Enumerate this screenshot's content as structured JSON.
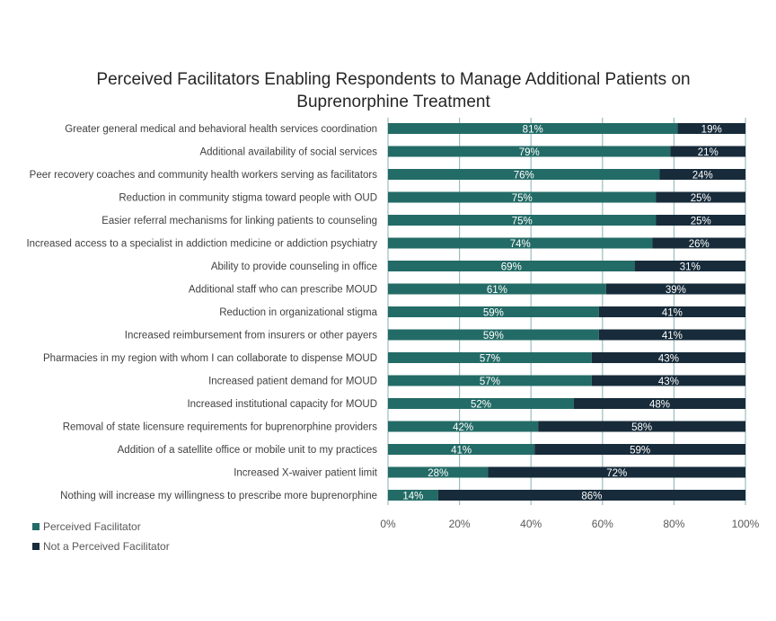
{
  "chart_data": {
    "type": "bar",
    "orientation": "horizontal",
    "stacked": true,
    "title": "Perceived Facilitators Enabling Respondents to Manage Additional Patients on Buprenorphine Treatment",
    "title_lines": [
      "Perceived Facilitators Enabling Respondents to Manage Additional Patients on",
      "Buprenorphine Treatment"
    ],
    "categories": [
      "Greater general medical and behavioral health services coordination",
      "Additional availability of social services",
      "Peer recovery coaches and community health workers serving as facilitators",
      "Reduction in community stigma toward people with OUD",
      "Easier referral mechanisms for linking patients to counseling",
      "Increased access to a specialist in addiction medicine or addiction psychiatry",
      "Ability to provide counseling in office",
      "Additional staff who can prescribe MOUD",
      "Reduction in organizational stigma",
      "Increased reimbursement from insurers or other payers",
      "Pharmacies in my region with whom I can collaborate to dispense MOUD",
      "Increased patient demand for MOUD",
      "Increased institutional capacity for MOUD",
      "Removal of state licensure requirements for buprenorphine providers",
      "Addition of a satellite office or mobile unit to my practices",
      "Increased X-waiver patient limit",
      "Nothing will increase my willingness to prescribe more buprenorphine"
    ],
    "series": [
      {
        "name": "Perceived Facilitator",
        "color": "#236b66",
        "values": [
          81,
          79,
          76,
          75,
          75,
          74,
          69,
          61,
          59,
          59,
          57,
          57,
          52,
          42,
          41,
          28,
          14
        ]
      },
      {
        "name": "Not a Perceived Facilitator",
        "color": "#172b3a",
        "values": [
          19,
          21,
          24,
          25,
          25,
          26,
          31,
          39,
          41,
          41,
          43,
          43,
          48,
          58,
          59,
          72,
          86
        ]
      }
    ],
    "xlim": [
      0,
      100
    ],
    "xticks": [
      "0%",
      "20%",
      "40%",
      "60%",
      "80%",
      "100%"
    ],
    "xtick_values": [
      0,
      20,
      40,
      60,
      80,
      100
    ],
    "grid": true,
    "legend_position": "bottom-left"
  }
}
